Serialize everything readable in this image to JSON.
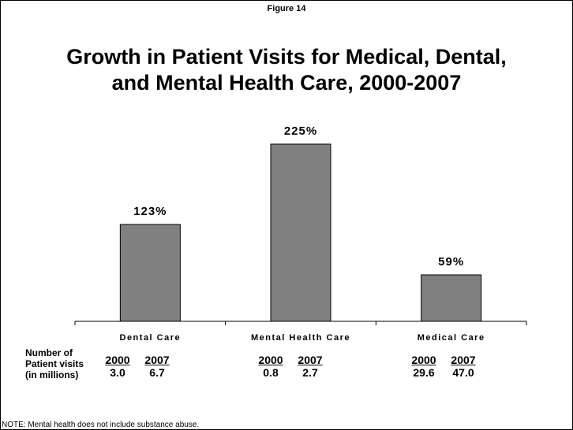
{
  "figure_label": "Figure 14",
  "title_line1": "Growth in Patient Visits for Medical, Dental,",
  "title_line2": "and Mental Health Care, 2000-2007",
  "row_header": [
    "Number of",
    "Patient visits",
    "(in millions)"
  ],
  "note": "NOTE: Mental health does not include substance abuse.",
  "colors": {
    "bar": "#808080",
    "bar_stroke": "#000000"
  },
  "chart_data": {
    "type": "bar",
    "categories": [
      "Dental Care",
      "Mental Health Care",
      "Medical Care"
    ],
    "values": [
      123,
      225,
      59
    ],
    "data_labels": [
      "123%",
      "225%",
      "59%"
    ],
    "ylim": [
      0,
      250
    ],
    "grid": false,
    "legend": "none",
    "title": "Growth in Patient Visits for Medical, Dental, and Mental Health Care, 2000-2007",
    "xlabel": "",
    "ylabel": ""
  },
  "visits_table": [
    {
      "years": [
        "2000",
        "2007"
      ],
      "values": [
        "3.0",
        "6.7"
      ]
    },
    {
      "years": [
        "2000",
        "2007"
      ],
      "values": [
        "0.8",
        "2.7"
      ]
    },
    {
      "years": [
        "2000",
        "2007"
      ],
      "values": [
        "29.6",
        "47.0"
      ]
    }
  ]
}
